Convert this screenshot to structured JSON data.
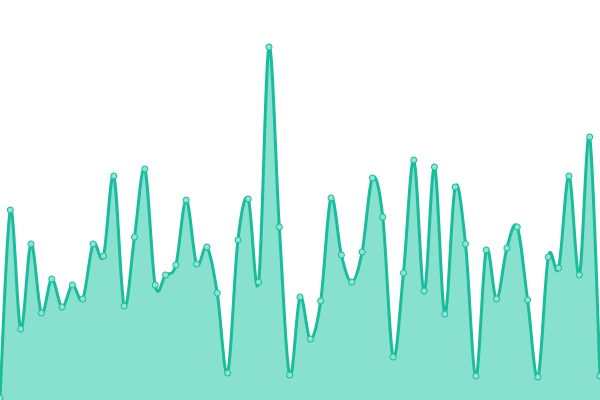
{
  "chart_data": {
    "type": "area",
    "title": "",
    "xlabel": "",
    "ylabel": "",
    "grid": false,
    "legend": "none",
    "ylim": [
      0,
      400
    ],
    "colors": {
      "line": "#1abc9c",
      "fill": "#88e0cf",
      "point_fill": "#8fe3d2"
    },
    "values": [
      2,
      190,
      71,
      156,
      87,
      121,
      93,
      115,
      101,
      156,
      144,
      224,
      94,
      163,
      231,
      115,
      125,
      135,
      200,
      136,
      153,
      107,
      27,
      160,
      201,
      118,
      353,
      173,
      25,
      103,
      61,
      99,
      202,
      145,
      118,
      148,
      222,
      183,
      43,
      127,
      240,
      109,
      233,
      86,
      213,
      156,
      24,
      150,
      101,
      152,
      173,
      100,
      23,
      143,
      132,
      224,
      125,
      263,
      24
    ]
  }
}
